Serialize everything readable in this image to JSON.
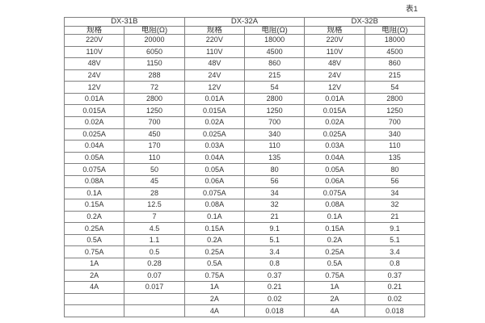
{
  "page": {
    "table_label": "表1"
  },
  "table": {
    "groups": [
      {
        "name": "DX-31B",
        "col_headers": [
          "规格",
          "电阻(Ω)"
        ]
      },
      {
        "name": "DX-32A",
        "col_headers": [
          "规格",
          "电阻(Ω)"
        ]
      },
      {
        "name": "DX-32B",
        "col_headers": [
          "规格",
          "电阻(Ω)"
        ]
      }
    ],
    "rows": [
      [
        "220V",
        "20000",
        "220V",
        "18000",
        "220V",
        "18000"
      ],
      [
        "110V",
        "6050",
        "110V",
        "4500",
        "110V",
        "4500"
      ],
      [
        "48V",
        "1150",
        "48V",
        "860",
        "48V",
        "860"
      ],
      [
        "24V",
        "288",
        "24V",
        "215",
        "24V",
        "215"
      ],
      [
        "12V",
        "72",
        "12V",
        "54",
        "12V",
        "54"
      ],
      [
        "0.01A",
        "2800",
        "0.01A",
        "2800",
        "0.01A",
        "2800"
      ],
      [
        "0.015A",
        "1250",
        "0.015A",
        "1250",
        "0.015A",
        "1250"
      ],
      [
        "0.02A",
        "700",
        "0.02A",
        "700",
        "0.02A",
        "700"
      ],
      [
        "0.025A",
        "450",
        "0.025A",
        "340",
        "0.025A",
        "340"
      ],
      [
        "0.04A",
        "170",
        "0.03A",
        "110",
        "0.03A",
        "110"
      ],
      [
        "0.05A",
        "110",
        "0.04A",
        "135",
        "0.04A",
        "135"
      ],
      [
        "0.075A",
        "50",
        "0.05A",
        "80",
        "0.05A",
        "80"
      ],
      [
        "0.08A",
        "45",
        "0.06A",
        "56",
        "0.06A",
        "56"
      ],
      [
        "0.1A",
        "28",
        "0.075A",
        "34",
        "0.075A",
        "34"
      ],
      [
        "0.15A",
        "12.5",
        "0.08A",
        "32",
        "0.08A",
        "32"
      ],
      [
        "0.2A",
        "7",
        "0.1A",
        "21",
        "0.1A",
        "21"
      ],
      [
        "0.25A",
        "4.5",
        "0.15A",
        "9.1",
        "0.15A",
        "9.1"
      ],
      [
        "0.5A",
        "1.1",
        "0.2A",
        "5.1",
        "0.2A",
        "5.1"
      ],
      [
        "0.75A",
        "0.5",
        "0.25A",
        "3.4",
        "0.25A",
        "3.4"
      ],
      [
        "1A",
        "0.28",
        "0.5A",
        "0.8",
        "0.5A",
        "0.8"
      ],
      [
        "2A",
        "0.07",
        "0.75A",
        "0.37",
        "0.75A",
        "0.37"
      ],
      [
        "4A",
        "0.017",
        "1A",
        "0.21",
        "1A",
        "0.21"
      ],
      [
        "",
        "",
        "2A",
        "0.02",
        "2A",
        "0.02"
      ],
      [
        "",
        "",
        "4A",
        "0.018",
        "4A",
        "0.018"
      ]
    ],
    "colors": {
      "border": "#808080",
      "text": "#333333",
      "background": "#ffffff"
    }
  }
}
